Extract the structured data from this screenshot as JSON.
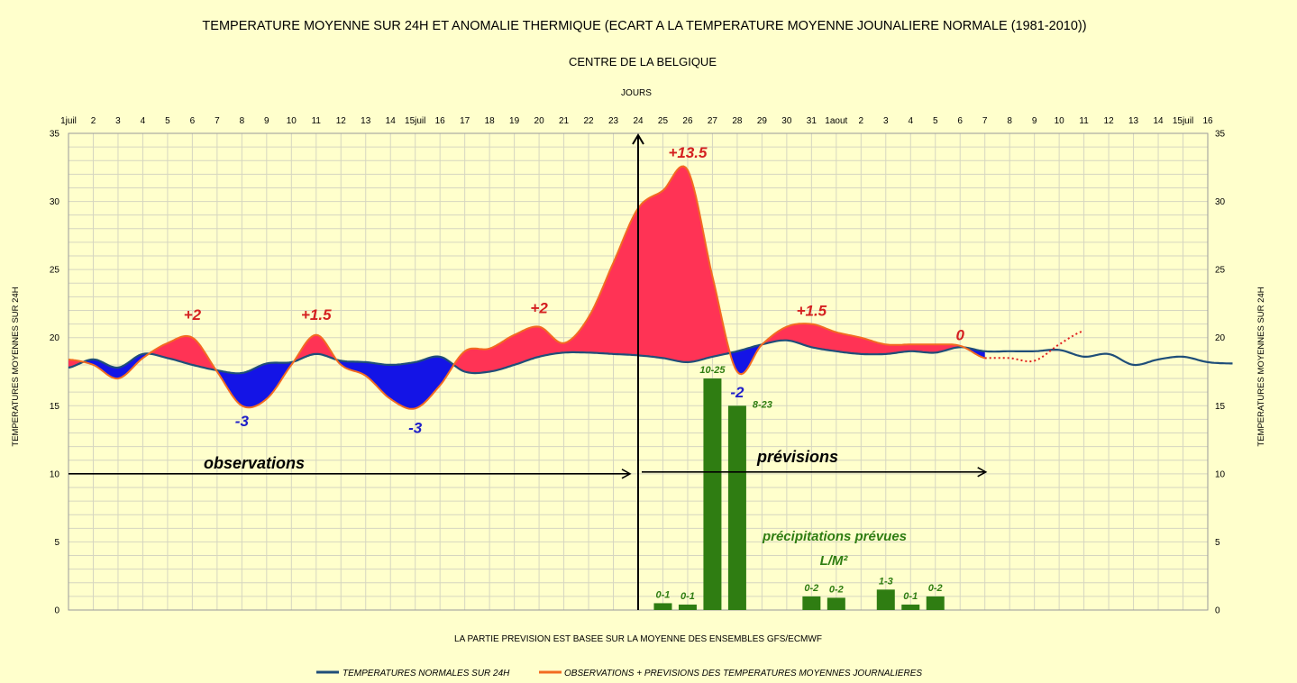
{
  "chart_data": {
    "type": "area",
    "title": "TEMPERATURE MOYENNE SUR 24H ET  ANOMALIE THERMIQUE (ECART A LA TEMPERATURE MOYENNE JOUNALIERE NORMALE (1981-2010))",
    "subtitle": "CENTRE DE LA BELGIQUE",
    "xlabel": "JOURS",
    "ylabel": "TEMPERATURES MOYENNES SUR 24H",
    "ylabel_right": "TEMPERATURES MOYENNES SUR 24H",
    "footnote": "LA PARTIE PREVISION EST BASEE SUR LA MOYENNE DES ENSEMBLES GFS/ECMWF",
    "ylim": [
      0,
      35
    ],
    "yticks": [
      0,
      5,
      10,
      15,
      20,
      25,
      30,
      35
    ],
    "grid": true,
    "x_tick_labels": [
      "1juil",
      "2",
      "3",
      "4",
      "5",
      "6",
      "7",
      "8",
      "9",
      "10",
      "11",
      "12",
      "13",
      "14",
      "15juil",
      "16",
      "17",
      "18",
      "19",
      "20",
      "21",
      "22",
      "23",
      "24",
      "25",
      "26",
      "27",
      "28",
      "29",
      "30",
      "31",
      "1aout",
      "2",
      "3",
      "4",
      "5",
      "6",
      "7",
      "8",
      "9",
      "10",
      "11",
      "12",
      "13",
      "14",
      "15juil",
      "16"
    ],
    "series": [
      {
        "name": "TEMPERATURES NORMALES SUR 24H",
        "color": "#1f4e79",
        "values": [
          17.8,
          18.4,
          17.8,
          18.8,
          18.5,
          18.0,
          17.6,
          17.4,
          18.1,
          18.2,
          18.8,
          18.3,
          18.2,
          18.0,
          18.2,
          18.6,
          17.5,
          17.5,
          18.0,
          18.6,
          18.9,
          18.9,
          18.8,
          18.7,
          18.5,
          18.2,
          18.6,
          19.0,
          19.5,
          19.8,
          19.3,
          19.0,
          18.8,
          18.8,
          19.0,
          18.9,
          19.3,
          19.0,
          19.0,
          19.0,
          19.1,
          18.6,
          18.8,
          18.0,
          18.4,
          18.6,
          18.2,
          18.1
        ]
      },
      {
        "name": "OBSERVATIONS + PREVISIONS DES TEMPERATURES MOYENNES JOURNALIERES",
        "color": "#f26b21",
        "values": [
          18.4,
          18.0,
          17.0,
          18.5,
          19.6,
          20.0,
          17.5,
          15.0,
          15.5,
          18.0,
          20.2,
          18.0,
          17.2,
          15.5,
          14.8,
          16.5,
          19.0,
          19.2,
          20.2,
          20.8,
          19.6,
          21.5,
          25.5,
          29.5,
          30.8,
          32.3,
          24.5,
          17.5,
          19.5,
          20.8,
          21.0,
          20.4,
          20.0,
          19.5,
          19.5,
          19.5,
          19.4,
          18.5
        ],
        "forecast_extension": [
          18.5,
          18.3,
          19.5,
          20.5
        ]
      }
    ],
    "precipitation": {
      "title_line1": "précipitations prévues",
      "title_line2": "L/M²",
      "bars": [
        {
          "day": 25,
          "value": 0.5,
          "label": "0-1"
        },
        {
          "day": 26,
          "value": 0.4,
          "label": "0-1"
        },
        {
          "day": 27,
          "value": 17.0,
          "label": "10-25"
        },
        {
          "day": 28,
          "value": 15.0,
          "label": "8-23"
        },
        {
          "day": 31,
          "value": 1.0,
          "label": "0-2"
        },
        {
          "day": 32,
          "value": 0.9,
          "label": "0-2"
        },
        {
          "day": 34,
          "value": 1.5,
          "label": "1-3"
        },
        {
          "day": 35,
          "value": 0.4,
          "label": "0-1"
        },
        {
          "day": 36,
          "value": 1.0,
          "label": "0-2"
        }
      ]
    },
    "anomalies": [
      {
        "day": 6,
        "value_y": 21.3,
        "text": "+2",
        "color": "#d42020"
      },
      {
        "day": 8,
        "value_y": 13.5,
        "text": "-3",
        "color": "#2020c8"
      },
      {
        "day": 11,
        "value_y": 21.3,
        "text": "+1.5",
        "color": "#d42020"
      },
      {
        "day": 15,
        "value_y": 13.0,
        "text": "-3",
        "color": "#2020c8"
      },
      {
        "day": 20,
        "value_y": 21.8,
        "text": "+2",
        "color": "#d42020"
      },
      {
        "day": 26,
        "value_y": 33.2,
        "text": "+13.5",
        "color": "#d42020"
      },
      {
        "day": 28,
        "value_y": 15.6,
        "text": "-2",
        "color": "#2020c8"
      },
      {
        "day": 31,
        "value_y": 21.6,
        "text": "+1.5",
        "color": "#d42020"
      },
      {
        "day": 37,
        "value_y": 19.8,
        "text": "0",
        "color": "#d42020"
      }
    ],
    "phase_labels": {
      "observations": "observations",
      "previsions": "prévisions",
      "forecast_start_day": 24.0
    },
    "colors": {
      "positive_anomaly_fill": "#ff3355",
      "negative_anomaly_fill": "#1414e6",
      "precip_bar": "#2f7d12",
      "background": "#ffffcc"
    }
  }
}
